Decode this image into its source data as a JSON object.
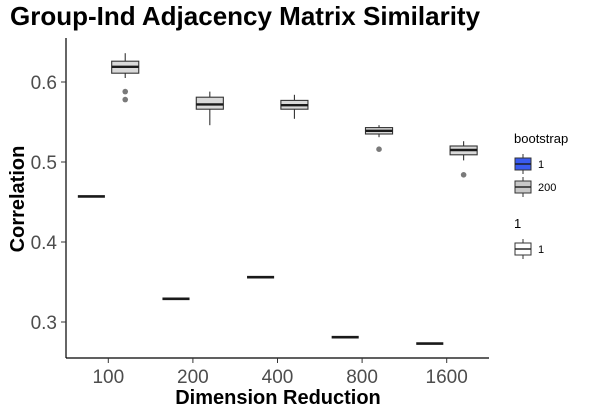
{
  "chart_data": {
    "type": "boxplot",
    "title": "Group-Ind Adjacency Matrix Similarity",
    "xlabel": "Dimension Reduction",
    "ylabel": "Correlation",
    "categories": [
      "100",
      "200",
      "400",
      "800",
      "1600"
    ],
    "y_ticks": [
      "0.3",
      "0.4",
      "0.5",
      "0.6"
    ],
    "ylim": [
      0.255,
      0.655
    ],
    "grid": false,
    "legend_position": "right",
    "legends": [
      {
        "title": "bootstrap",
        "entries": [
          {
            "label": "1",
            "fill": "#3a5bf0"
          },
          {
            "label": "200",
            "fill": "#c8c8c8"
          }
        ]
      },
      {
        "title": "1",
        "entries": [
          {
            "label": "1",
            "fill": "#ffffff"
          }
        ]
      }
    ],
    "series": [
      {
        "bootstrap": "1",
        "values": [
          0.457,
          0.329,
          0.356,
          0.281,
          0.273
        ]
      },
      {
        "bootstrap": "200",
        "boxes": [
          {
            "category": "100",
            "whisker_low": 0.605,
            "q1": 0.611,
            "median": 0.619,
            "q3": 0.626,
            "whisker_high": 0.636,
            "outliers": [
              0.588,
              0.578
            ]
          },
          {
            "category": "200",
            "whisker_low": 0.546,
            "q1": 0.566,
            "median": 0.572,
            "q3": 0.581,
            "whisker_high": 0.588,
            "outliers": []
          },
          {
            "category": "400",
            "whisker_low": 0.554,
            "q1": 0.566,
            "median": 0.571,
            "q3": 0.577,
            "whisker_high": 0.584,
            "outliers": []
          },
          {
            "category": "800",
            "whisker_low": 0.531,
            "q1": 0.535,
            "median": 0.539,
            "q3": 0.543,
            "whisker_high": 0.546,
            "outliers": [
              0.516
            ]
          },
          {
            "category": "1600",
            "whisker_low": 0.502,
            "q1": 0.509,
            "median": 0.515,
            "q3": 0.52,
            "whisker_high": 0.526,
            "outliers": [
              0.484
            ]
          }
        ]
      }
    ]
  }
}
